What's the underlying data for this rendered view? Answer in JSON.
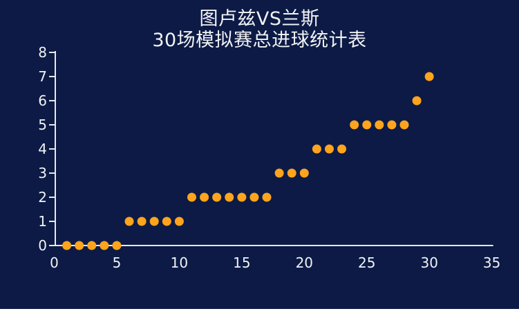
{
  "page": {
    "background": "#FFFFFF"
  },
  "title": {
    "line1": "图卢兹VS兰斯",
    "line2": "30场模拟赛总进球统计表"
  },
  "chart_data": {
    "type": "scatter",
    "title": "图卢兹VS兰斯 30场模拟赛总进球统计表",
    "xlabel": "",
    "ylabel": "",
    "x": [
      1,
      2,
      3,
      4,
      5,
      6,
      7,
      8,
      9,
      10,
      11,
      12,
      13,
      14,
      15,
      16,
      17,
      18,
      19,
      20,
      21,
      22,
      23,
      24,
      25,
      26,
      27,
      28,
      29,
      30
    ],
    "y": [
      0,
      0,
      0,
      0,
      0,
      1,
      1,
      1,
      1,
      1,
      2,
      2,
      2,
      2,
      2,
      2,
      2,
      3,
      3,
      3,
      4,
      4,
      4,
      5,
      5,
      5,
      5,
      5,
      6,
      7
    ],
    "xlim": [
      0,
      35
    ],
    "ylim": [
      0,
      8
    ],
    "x_ticks": [
      0,
      5,
      10,
      15,
      20,
      25,
      30,
      35
    ],
    "y_ticks": [
      0,
      1,
      2,
      3,
      4,
      5,
      6,
      7,
      8
    ],
    "grid": false,
    "legend": "none",
    "point_color": "#FFA41C",
    "axis_color": "#E8E9EE",
    "tick_label_color": "#F2F3F5",
    "title_color": "#F2F3F5",
    "background_color": "#0C1A45"
  }
}
